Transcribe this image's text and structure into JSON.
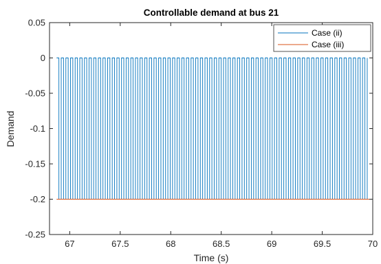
{
  "chart_data": {
    "type": "line",
    "title": "Controllable demand at bus 21",
    "xlabel": "Time (s)",
    "ylabel": "Demand",
    "xlim": [
      66.8,
      70
    ],
    "ylim": [
      -0.25,
      0.05
    ],
    "x_ticks": [
      67,
      67.5,
      68,
      68.5,
      69,
      69.5,
      70
    ],
    "x_tick_labels": [
      "67",
      "67.5",
      "68",
      "68.5",
      "69",
      "69.5",
      "70"
    ],
    "y_ticks": [
      0.05,
      0,
      -0.05,
      -0.1,
      -0.15,
      -0.2,
      -0.25
    ],
    "y_tick_labels": [
      "0.05",
      "0",
      "-0.05",
      "-0.1",
      "-0.15",
      "-0.2",
      "-0.25"
    ],
    "grid": false,
    "legend_position": "top-right",
    "series": [
      {
        "name": "Case (ii)",
        "color": "#0072BD",
        "pattern": "square-wave",
        "x_start": 66.87,
        "x_end": 69.98,
        "period": 0.0459,
        "high": 0,
        "low": -0.2
      },
      {
        "name": "Case (iii)",
        "color": "#D95319",
        "x": [
          66.87,
          69.98
        ],
        "y": [
          -0.2,
          -0.2
        ]
      }
    ]
  }
}
